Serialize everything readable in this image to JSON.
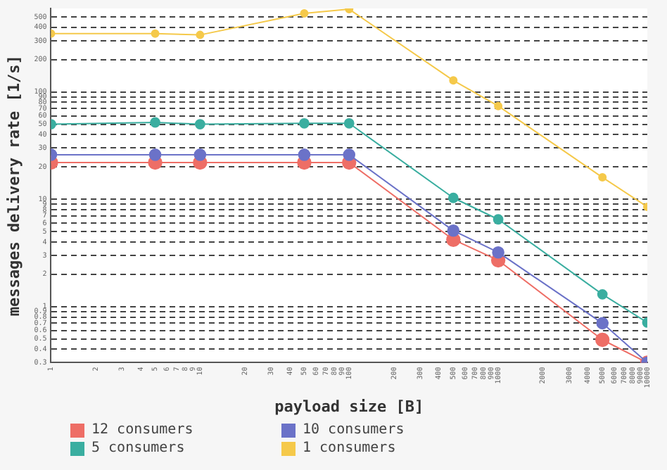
{
  "chart_data": {
    "type": "line",
    "xlabel": "payload size [B]",
    "ylabel": "messages delivery rate [1/s]",
    "x": [
      1,
      5,
      10,
      50,
      100,
      500,
      1000,
      5000,
      10000
    ],
    "series": [
      {
        "name": "12 consumers",
        "color": "#ee6e66",
        "values": [
          22,
          22,
          22,
          22,
          22,
          4.2,
          2.7,
          0.49,
          0.3
        ]
      },
      {
        "name": "10 consumers",
        "color": "#6b72c8",
        "values": [
          26,
          26,
          26,
          26,
          26,
          5.1,
          3.2,
          0.7,
          0.3
        ]
      },
      {
        "name": "5 consumers",
        "color": "#3aaea0",
        "values": [
          50,
          52,
          50,
          51,
          51,
          10.3,
          6.5,
          1.3,
          0.71
        ]
      },
      {
        "name": "1 consumers",
        "color": "#f5c94a",
        "values": [
          350,
          350,
          340,
          540,
          590,
          128,
          74,
          16,
          8.5
        ]
      }
    ],
    "log": "xy",
    "xlim": [
      1,
      10000
    ],
    "ylim": [
      0.3,
      600
    ],
    "xticks": [
      1,
      2,
      3,
      4,
      5,
      6,
      7,
      8,
      9,
      10,
      20,
      30,
      40,
      50,
      60,
      70,
      80,
      90,
      100,
      200,
      300,
      400,
      500,
      600,
      700,
      800,
      900,
      1000,
      2000,
      3000,
      4000,
      5000,
      6000,
      7000,
      8000,
      9000,
      10000
    ],
    "yticks": [
      0.3,
      0.4,
      0.5,
      0.6,
      0.7,
      0.8,
      0.9,
      1,
      2,
      3,
      4,
      5,
      6,
      7,
      8,
      9,
      10,
      20,
      30,
      40,
      50,
      60,
      70,
      80,
      90,
      100,
      200,
      300,
      400,
      500
    ],
    "grid": "y",
    "legend": "bottom",
    "marker": "circle",
    "line_style": "solid"
  }
}
